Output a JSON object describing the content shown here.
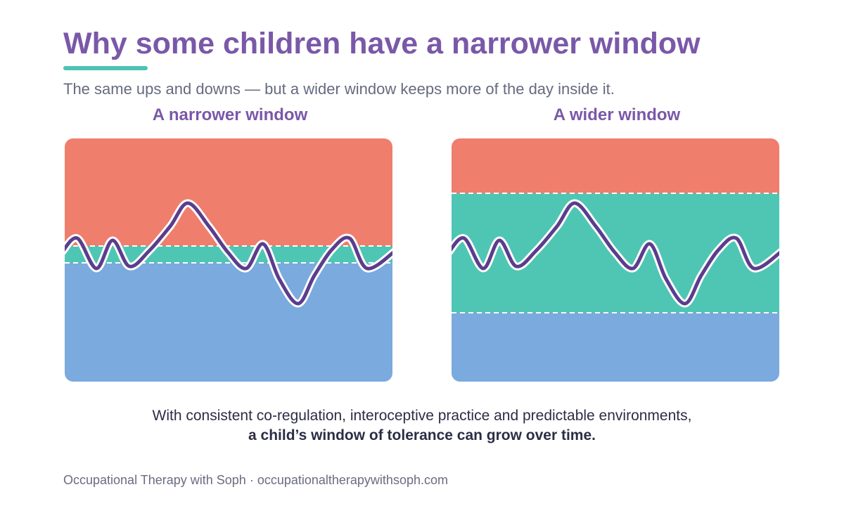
{
  "header": {
    "title": "Why some children have a narrower window",
    "subtitle": "The same ups and downs — but a wider window keeps more of the day inside it."
  },
  "panels": {
    "narrow": {
      "title": "A narrower window"
    },
    "wide": {
      "title": "A wider window"
    }
  },
  "caption": {
    "line1": "With consistent co-regulation, interoceptive practice and predictable environments,",
    "line2": "a child’s window of tolerance can grow over time."
  },
  "footer": {
    "text": "Occupational Therapy with Soph · occupationaltherapywithsoph.com"
  },
  "colors": {
    "title": "#7a58a8",
    "accent": "#4cc4b2",
    "hyperarousal_zone": "#ef7e6c",
    "window_zone": "#4fc6b4",
    "hypoarousal_zone": "#7aaade",
    "arousal_line": "#5b3d8c",
    "line_halo": "#ffffff"
  }
}
